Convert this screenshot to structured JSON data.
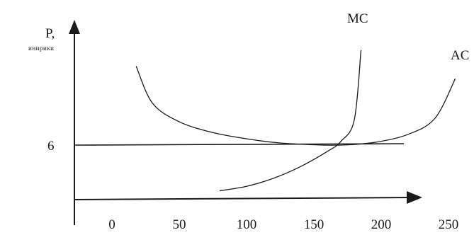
{
  "chart_data": {
    "type": "line",
    "ylabel": "P,",
    "ylabel_sub": "инирики",
    "y_ticks": [
      {
        "value": 6,
        "label": "6"
      }
    ],
    "x_ticks": [
      {
        "value": 0,
        "label": "0"
      },
      {
        "value": 50,
        "label": "50"
      },
      {
        "value": 100,
        "label": "100"
      },
      {
        "value": 150,
        "label": "150"
      },
      {
        "value": 200,
        "label": "200"
      },
      {
        "value": 250,
        "label": "250"
      }
    ],
    "price_line": {
      "y": 6
    },
    "series": [
      {
        "name": "MC",
        "x": [
          80,
          100,
          120,
          140,
          160,
          170,
          180,
          185
        ],
        "y": [
          3.45,
          3.7,
          4.15,
          4.8,
          5.65,
          6.2,
          7.4,
          11.3
        ]
      },
      {
        "name": "AC",
        "x": [
          18,
          30,
          50,
          75,
          100,
          125,
          150,
          170,
          195,
          220,
          240,
          255
        ],
        "y": [
          10.4,
          8.35,
          7.3,
          6.7,
          6.35,
          6.12,
          6.02,
          6.0,
          6.15,
          6.6,
          7.5,
          9.7
        ]
      }
    ]
  }
}
